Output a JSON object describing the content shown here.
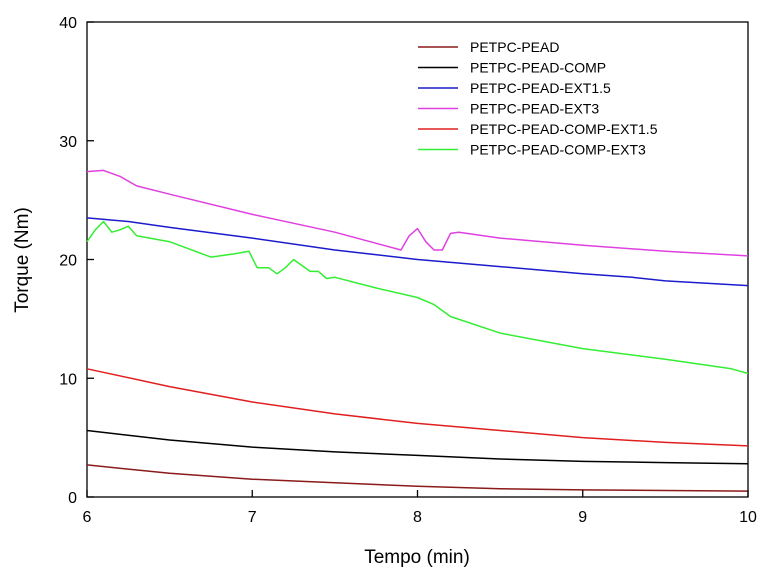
{
  "chart_data": {
    "type": "line",
    "title": "",
    "xlabel": "Tempo (min)",
    "ylabel": "Torque (Nm)",
    "xlim": [
      6,
      10
    ],
    "ylim": [
      0,
      40
    ],
    "xticks": [
      "6",
      "7",
      "8",
      "9",
      "10"
    ],
    "yticks": [
      "0",
      "10",
      "20",
      "30",
      "40"
    ],
    "grid": false,
    "legend_position": "top-right",
    "series": [
      {
        "name": "PETPC-PEAD",
        "color": "#8b1a1a",
        "x": [
          6.0,
          6.5,
          7.0,
          7.5,
          8.0,
          8.5,
          9.0,
          9.5,
          10.0
        ],
        "y": [
          2.7,
          2.0,
          1.5,
          1.2,
          0.9,
          0.7,
          0.6,
          0.55,
          0.5
        ]
      },
      {
        "name": "PETPC-PEAD-COMP",
        "color": "#000000",
        "x": [
          6.0,
          6.5,
          7.0,
          7.5,
          8.0,
          8.5,
          9.0,
          9.5,
          10.0
        ],
        "y": [
          5.6,
          4.8,
          4.2,
          3.8,
          3.5,
          3.2,
          3.0,
          2.9,
          2.8
        ]
      },
      {
        "name": "PETPC-PEAD-EXT1.5",
        "color": "#1c1ccc",
        "x": [
          6.0,
          6.25,
          6.5,
          7.0,
          7.5,
          8.0,
          8.5,
          9.0,
          9.3,
          9.5,
          10.0
        ],
        "y": [
          23.5,
          23.2,
          22.7,
          21.8,
          20.8,
          20.0,
          19.4,
          18.8,
          18.5,
          18.2,
          17.8
        ]
      },
      {
        "name": "PETPC-PEAD-EXT3",
        "color": "#e040e0",
        "x": [
          6.0,
          6.1,
          6.2,
          6.3,
          6.5,
          7.0,
          7.5,
          7.9,
          7.95,
          8.0,
          8.05,
          8.1,
          8.15,
          8.2,
          8.25,
          8.5,
          9.0,
          9.5,
          10.0
        ],
        "y": [
          27.4,
          27.5,
          27.0,
          26.2,
          25.5,
          23.8,
          22.3,
          20.8,
          22.0,
          22.6,
          21.5,
          20.8,
          20.8,
          22.2,
          22.3,
          21.8,
          21.2,
          20.7,
          20.3
        ]
      },
      {
        "name": "PETPC-PEAD-COMP-EXT1.5",
        "color": "#e02020",
        "x": [
          6.0,
          6.5,
          7.0,
          7.5,
          8.0,
          8.5,
          9.0,
          9.5,
          10.0
        ],
        "y": [
          10.8,
          9.3,
          8.0,
          7.0,
          6.2,
          5.6,
          5.0,
          4.6,
          4.3
        ]
      },
      {
        "name": "PETPC-PEAD-COMP-EXT3",
        "color": "#33ee33",
        "x": [
          6.0,
          6.05,
          6.1,
          6.15,
          6.2,
          6.25,
          6.3,
          6.5,
          6.75,
          6.9,
          6.98,
          7.03,
          7.1,
          7.15,
          7.2,
          7.25,
          7.3,
          7.35,
          7.4,
          7.45,
          7.5,
          7.75,
          8.0,
          8.1,
          8.2,
          8.5,
          9.0,
          9.5,
          9.9,
          10.0
        ],
        "y": [
          21.5,
          22.5,
          23.2,
          22.3,
          22.5,
          22.8,
          22.0,
          21.5,
          20.2,
          20.5,
          20.7,
          19.3,
          19.3,
          18.8,
          19.3,
          20.0,
          19.5,
          19.0,
          19.0,
          18.4,
          18.5,
          17.6,
          16.8,
          16.2,
          15.2,
          13.8,
          12.5,
          11.6,
          10.8,
          10.4
        ]
      }
    ]
  }
}
